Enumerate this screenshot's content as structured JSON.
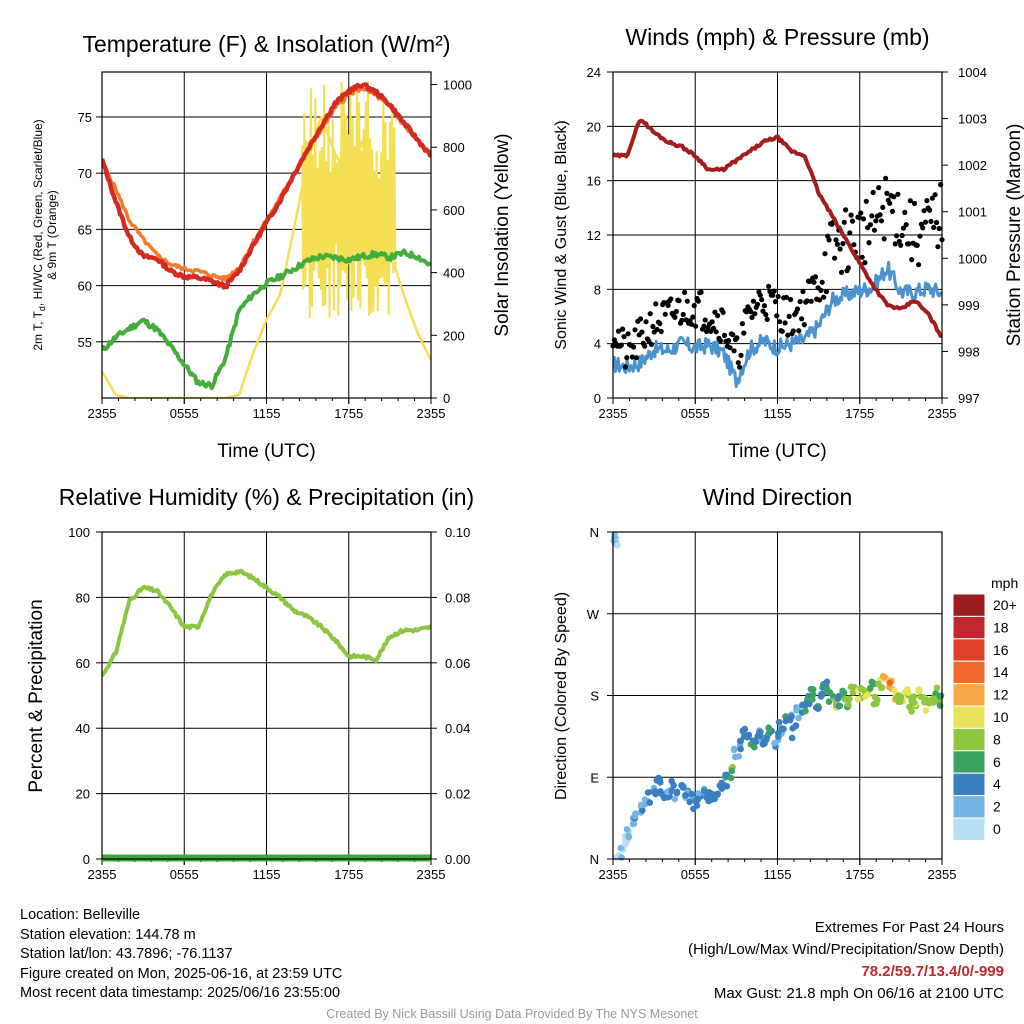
{
  "chart_data": [
    {
      "type": "line",
      "title": "Temperature (F) & Insolation (W/m²)",
      "xlabel": "Time (UTC)",
      "ylabel": "2m T, T_d, HI/WC (Red, Green, Scarlet/Blue) & 9m T (Orange)",
      "ylabel_lines": [
        "2m T, T",
        "d",
        ", HI/WC (Red, Green, Scarlet/Blue)",
        "& 9m T (Orange)"
      ],
      "y2label": "Solar Insolation (Yellow)",
      "x_ticks": [
        "2355",
        "0555",
        "1155",
        "1755",
        "2355"
      ],
      "ylim": [
        50,
        79
      ],
      "y_ticks": [
        55,
        60,
        65,
        70,
        75
      ],
      "y2lim": [
        0,
        1040
      ],
      "y2_ticks": [
        0,
        200,
        400,
        600,
        800,
        1000
      ],
      "x": [
        0,
        1,
        2,
        3,
        4,
        5,
        6,
        7,
        8,
        9,
        10,
        11,
        12,
        13,
        14,
        15,
        16,
        17,
        18,
        19,
        20,
        21,
        22,
        23,
        24
      ],
      "series": [
        {
          "name": "2m T",
          "color": "#d42a20",
          "width": 4.5,
          "values": [
            71.2,
            67.5,
            64.3,
            62.6,
            62.4,
            61.3,
            60.8,
            60.7,
            60.4,
            59.9,
            61.3,
            63.5,
            65.6,
            67.6,
            69.9,
            72.1,
            74.2,
            76.2,
            77.3,
            77.9,
            77.2,
            76.1,
            74.5,
            73.0,
            71.5
          ]
        },
        {
          "name": "9m T",
          "color": "#f07b2c",
          "width": 3.5,
          "values": [
            71.0,
            68.6,
            65.8,
            64.1,
            62.7,
            61.9,
            61.5,
            61.3,
            60.9,
            60.6,
            61.6,
            63.8,
            65.8,
            67.8,
            70.0,
            72.0,
            73.9,
            75.8,
            77.0,
            77.6,
            76.9,
            75.9,
            74.3,
            72.9,
            71.5
          ]
        },
        {
          "name": "T_d",
          "color": "#45ad3c",
          "width": 4,
          "values": [
            54.2,
            55.4,
            56.2,
            56.9,
            56.1,
            54.6,
            53.0,
            51.4,
            51.1,
            53.5,
            57.8,
            59.2,
            60.2,
            60.8,
            61.5,
            62.2,
            62.6,
            62.5,
            62.3,
            62.6,
            62.8,
            62.5,
            62.9,
            62.6,
            61.8
          ]
        },
        {
          "name": "Solar Insolation",
          "axis": "y2",
          "color": "#f4df55",
          "width": 2.5,
          "values": [
            85,
            10,
            0,
            0,
            0,
            0,
            0,
            0,
            0,
            0,
            10,
            140,
            250,
            330,
            540,
            760,
            900,
            780,
            700,
            820,
            560,
            470,
            330,
            210,
            120
          ]
        }
      ]
    },
    {
      "type": "line",
      "title": "Winds (mph) & Pressure (mb)",
      "xlabel": "Time (UTC)",
      "ylabel": "Sonic Wind & Gust (Blue, Black)",
      "y2label": "Station Pressure (Maroon)",
      "x_ticks": [
        "2355",
        "0555",
        "1155",
        "1755",
        "2355"
      ],
      "ylim": [
        0,
        24
      ],
      "y_ticks": [
        0,
        4,
        8,
        12,
        16,
        20,
        24
      ],
      "y2lim": [
        997,
        1004
      ],
      "y2_ticks": [
        997,
        998,
        999,
        1000,
        1001,
        1002,
        1003,
        1004
      ],
      "x": [
        0,
        1,
        2,
        3,
        4,
        5,
        6,
        7,
        8,
        9,
        10,
        11,
        12,
        13,
        14,
        15,
        16,
        17,
        18,
        19,
        20,
        21,
        22,
        23,
        24
      ],
      "series": [
        {
          "name": "Sonic Wind",
          "color": "#4b93cf",
          "width": 3,
          "values": [
            2.5,
            2.3,
            2.6,
            3.6,
            3.5,
            4.0,
            3.7,
            3.9,
            3.4,
            1.3,
            3.6,
            4.2,
            3.7,
            4.0,
            4.3,
            5.3,
            7.2,
            7.6,
            7.9,
            8.2,
            9.6,
            7.8,
            7.8,
            8.1,
            7.7
          ]
        },
        {
          "name": "Gust",
          "axis": "y",
          "color": "#000000",
          "style": "dots",
          "values": [
            5.2,
            3.1,
            4.4,
            5.6,
            5.9,
            6.6,
            6.8,
            6.2,
            5.6,
            2.9,
            6.4,
            7.4,
            6.6,
            5.8,
            6.9,
            8.6,
            11.0,
            11.6,
            12.1,
            12.7,
            14.3,
            13.2,
            11.9,
            12.5,
            13.5
          ]
        },
        {
          "name": "Station Pressure",
          "axis": "y2",
          "color": "#a31d1d",
          "width": 4,
          "values": [
            1002.2,
            1002.2,
            1003.0,
            1002.7,
            1002.5,
            1002.4,
            1002.2,
            1001.9,
            1001.9,
            1002.1,
            1002.3,
            1002.5,
            1002.6,
            1002.3,
            1002.2,
            1001.4,
            1000.9,
            1000.4,
            999.9,
            999.4,
            999.0,
            998.9,
            999.1,
            998.8,
            998.3
          ]
        }
      ]
    },
    {
      "type": "line",
      "title": "Relative Humidity (%) & Precipitation (in)",
      "ylabel": "Percent & Precipitation",
      "x_ticks": [
        "2355",
        "0555",
        "1155",
        "1755",
        "2355"
      ],
      "ylim": [
        0,
        100
      ],
      "y_ticks": [
        0,
        20,
        40,
        60,
        80,
        100
      ],
      "y2lim": [
        0,
        0.1
      ],
      "y2_ticks": [
        "0.00",
        "0.02",
        "0.04",
        "0.06",
        "0.08",
        "0.10"
      ],
      "x": [
        0,
        1,
        2,
        3,
        4,
        5,
        6,
        7,
        8,
        9,
        10,
        11,
        12,
        13,
        14,
        15,
        16,
        17,
        18,
        19,
        20,
        21,
        22,
        23,
        24
      ],
      "series": [
        {
          "name": "Relative Humidity",
          "color": "#8cc540",
          "width": 4,
          "values": [
            56,
            63,
            79,
            83,
            82,
            77,
            71,
            71,
            81,
            87,
            88,
            86,
            83,
            80,
            76,
            74,
            71,
            67,
            62,
            62,
            61,
            68,
            70,
            70,
            71
          ]
        },
        {
          "name": "Precipitation",
          "axis": "y2",
          "color": "#3aa83c",
          "width": 7,
          "values": [
            0,
            0,
            0,
            0,
            0,
            0,
            0,
            0,
            0,
            0,
            0,
            0,
            0,
            0,
            0,
            0,
            0,
            0,
            0,
            0,
            0,
            0,
            0,
            0,
            0
          ]
        }
      ]
    },
    {
      "type": "scatter",
      "title": "Wind Direction",
      "ylabel": "Direction (Colored By Speed)",
      "x_ticks": [
        "2355",
        "0555",
        "1155",
        "1755",
        "2355"
      ],
      "y_ticks": [
        "N",
        "E",
        "S",
        "W",
        "N"
      ],
      "ylim": [
        0,
        360
      ],
      "x": [
        0.1,
        0.2,
        0.3,
        0.6,
        0.9,
        1.1,
        1.4,
        1.7,
        2.0,
        2.3,
        2.6,
        3.0,
        3.3,
        3.6,
        4.0,
        4.3,
        4.6,
        5.0,
        5.3,
        5.7,
        6.0,
        6.3,
        6.7,
        7.0,
        7.3,
        7.7,
        8.0,
        8.3,
        8.6,
        9.0,
        9.2,
        9.5,
        9.8,
        10.2,
        10.5,
        10.9,
        11.2,
        11.5,
        11.9,
        12.2,
        12.5,
        12.9,
        13.2,
        13.5,
        13.9,
        14.2,
        14.5,
        14.9,
        15.2,
        15.5,
        15.9,
        16.2,
        16.5,
        16.9,
        17.2,
        17.5,
        17.9,
        18.2,
        18.5,
        18.9,
        19.2,
        19.5,
        19.8,
        20.2,
        20.5,
        20.8,
        21.1,
        21.4,
        21.7,
        22.0,
        22.3,
        22.6,
        22.9,
        23.2,
        23.5,
        23.8
      ],
      "values": [
        355,
        350,
        345,
        5,
        20,
        28,
        38,
        45,
        55,
        62,
        68,
        75,
        85,
        72,
        70,
        80,
        68,
        75,
        72,
        65,
        60,
        70,
        76,
        70,
        68,
        75,
        78,
        86,
        95,
        115,
        125,
        140,
        132,
        128,
        135,
        133,
        128,
        138,
        130,
        145,
        150,
        155,
        140,
        160,
        168,
        175,
        180,
        170,
        185,
        190,
        178,
        168,
        175,
        182,
        172,
        190,
        180,
        185,
        178,
        188,
        175,
        195,
        200,
        195,
        182,
        178,
        176,
        182,
        168,
        174,
        185,
        178,
        170,
        178,
        182,
        174
      ],
      "speeds": [
        1,
        0,
        0,
        1,
        0,
        1,
        1,
        2,
        2,
        2,
        3,
        3,
        3,
        3,
        3,
        3,
        3,
        3,
        3,
        3,
        3,
        3,
        3,
        3,
        3,
        3,
        3,
        4,
        7,
        1,
        2,
        3,
        3,
        4,
        3,
        3,
        3,
        4,
        3,
        3,
        4,
        3,
        4,
        3,
        4,
        4,
        5,
        4,
        4,
        5,
        5,
        8,
        4,
        6,
        6,
        7,
        8,
        8,
        9,
        7,
        8,
        8,
        10,
        12,
        11,
        7,
        8,
        9,
        7,
        8,
        9,
        7,
        8,
        7,
        7,
        6
      ],
      "colorbar": {
        "unit": "mph",
        "labels": [
          "20+",
          "18",
          "16",
          "14",
          "12",
          "10",
          "8",
          "6",
          "4",
          "2",
          "0"
        ],
        "colors": [
          "#9b1c1c",
          "#c1272d",
          "#e0412a",
          "#f16a2c",
          "#f7a847",
          "#e8e35a",
          "#8dc63f",
          "#3aa35f",
          "#3a7fbf",
          "#75b5e5",
          "#b7e0f5"
        ]
      }
    }
  ],
  "footer": {
    "location": "Location: Belleville",
    "elevation": "Station elevation: 144.78 m",
    "latlon": "Station lat/lon: 43.7896; -76.1137",
    "created": "Figure created on Mon, 2025-06-16, at 23:59 UTC",
    "recent": "Most recent data timestamp: 2025/06/16 23:55:00",
    "extremes_title": "Extremes For Past 24 Hours",
    "extremes_subtitle": "(High/Low/Max Wind/Precipitation/Snow Depth)",
    "extremes_values": "78.2/59.7/13.4/0/-999",
    "max_gust": "Max Gust: 21.8 mph On 06/16 at 2100 UTC",
    "credit": "Created By Nick Bassill Using Data Provided By The NYS Mesonet"
  }
}
